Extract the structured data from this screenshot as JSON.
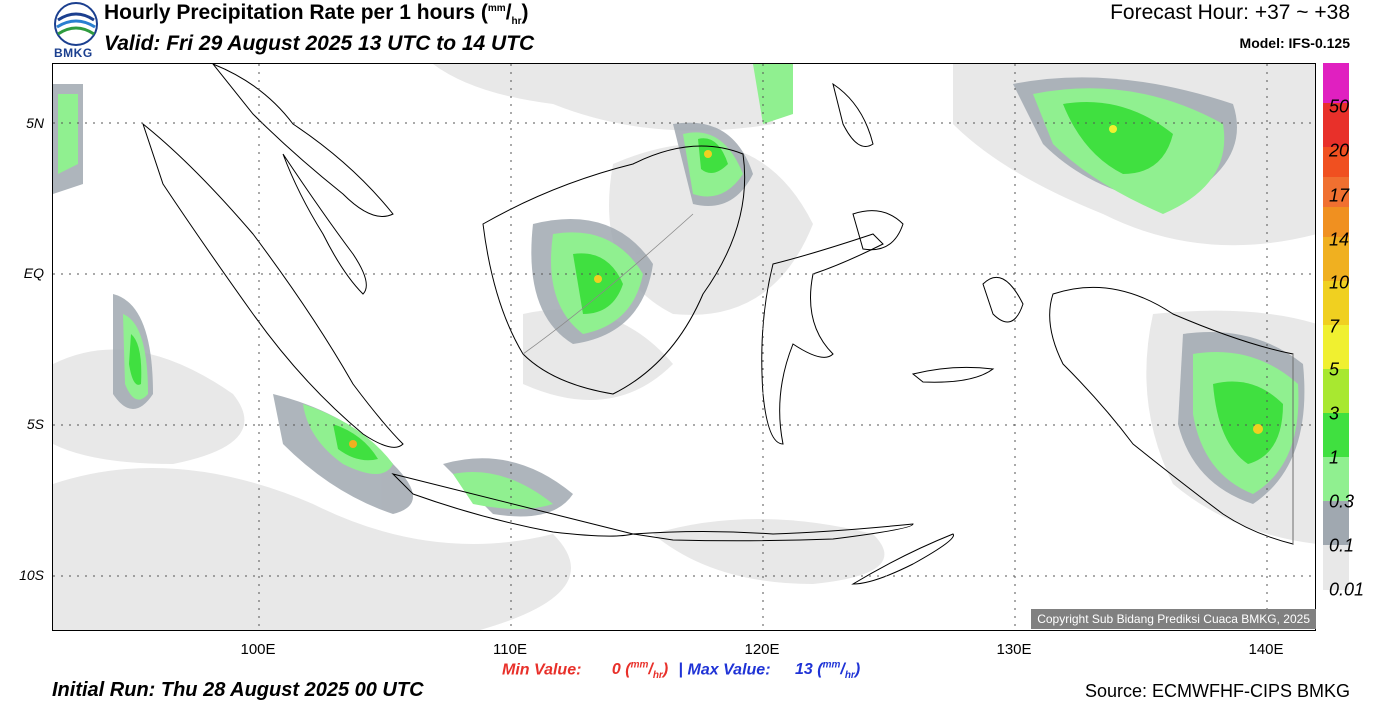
{
  "header": {
    "logo_text": "BMKG",
    "title": "Hourly Precipitation Rate per 1 hours (",
    "title_unit_num": "mm",
    "title_unit_den": "hr",
    "title_close": ")",
    "valid": "Valid: Fri 29 August 2025 13 UTC to 14 UTC",
    "forecast_hour": "Forecast Hour: +37 ~ +38",
    "model": "Model: IFS-0.125"
  },
  "axes": {
    "lat_ticks": [
      "5N",
      "EQ",
      "5S",
      "10S"
    ],
    "lon_ticks": [
      "100E",
      "110E",
      "120E",
      "130E",
      "140E"
    ]
  },
  "legend": {
    "labels": [
      "50",
      "20",
      "17",
      "14",
      "10",
      "7",
      "5",
      "3",
      "1",
      "0.3",
      "0.1",
      "0.01"
    ],
    "colors": [
      "#e020c0",
      "#e8302a",
      "#f05020",
      "#f07030",
      "#f09020",
      "#f0b020",
      "#f0d020",
      "#f0f030",
      "#a8e830",
      "#40e040",
      "#90f090",
      "#a0a8b0",
      "#e8e8e8"
    ]
  },
  "footer": {
    "copyright": "Copyright Sub Bidang Prediksi Cuaca BMKG, 2025",
    "min_label": "Min Value:",
    "min_value": "0",
    "max_label": "Max Value:",
    "max_value": "13",
    "unit_num": "mm",
    "unit_den": "hr",
    "separator": "|",
    "initial_run": "Initial Run: Thu 28 August 2025 00 UTC",
    "source": "Source: ECMWFHF-CIPS BMKG"
  }
}
